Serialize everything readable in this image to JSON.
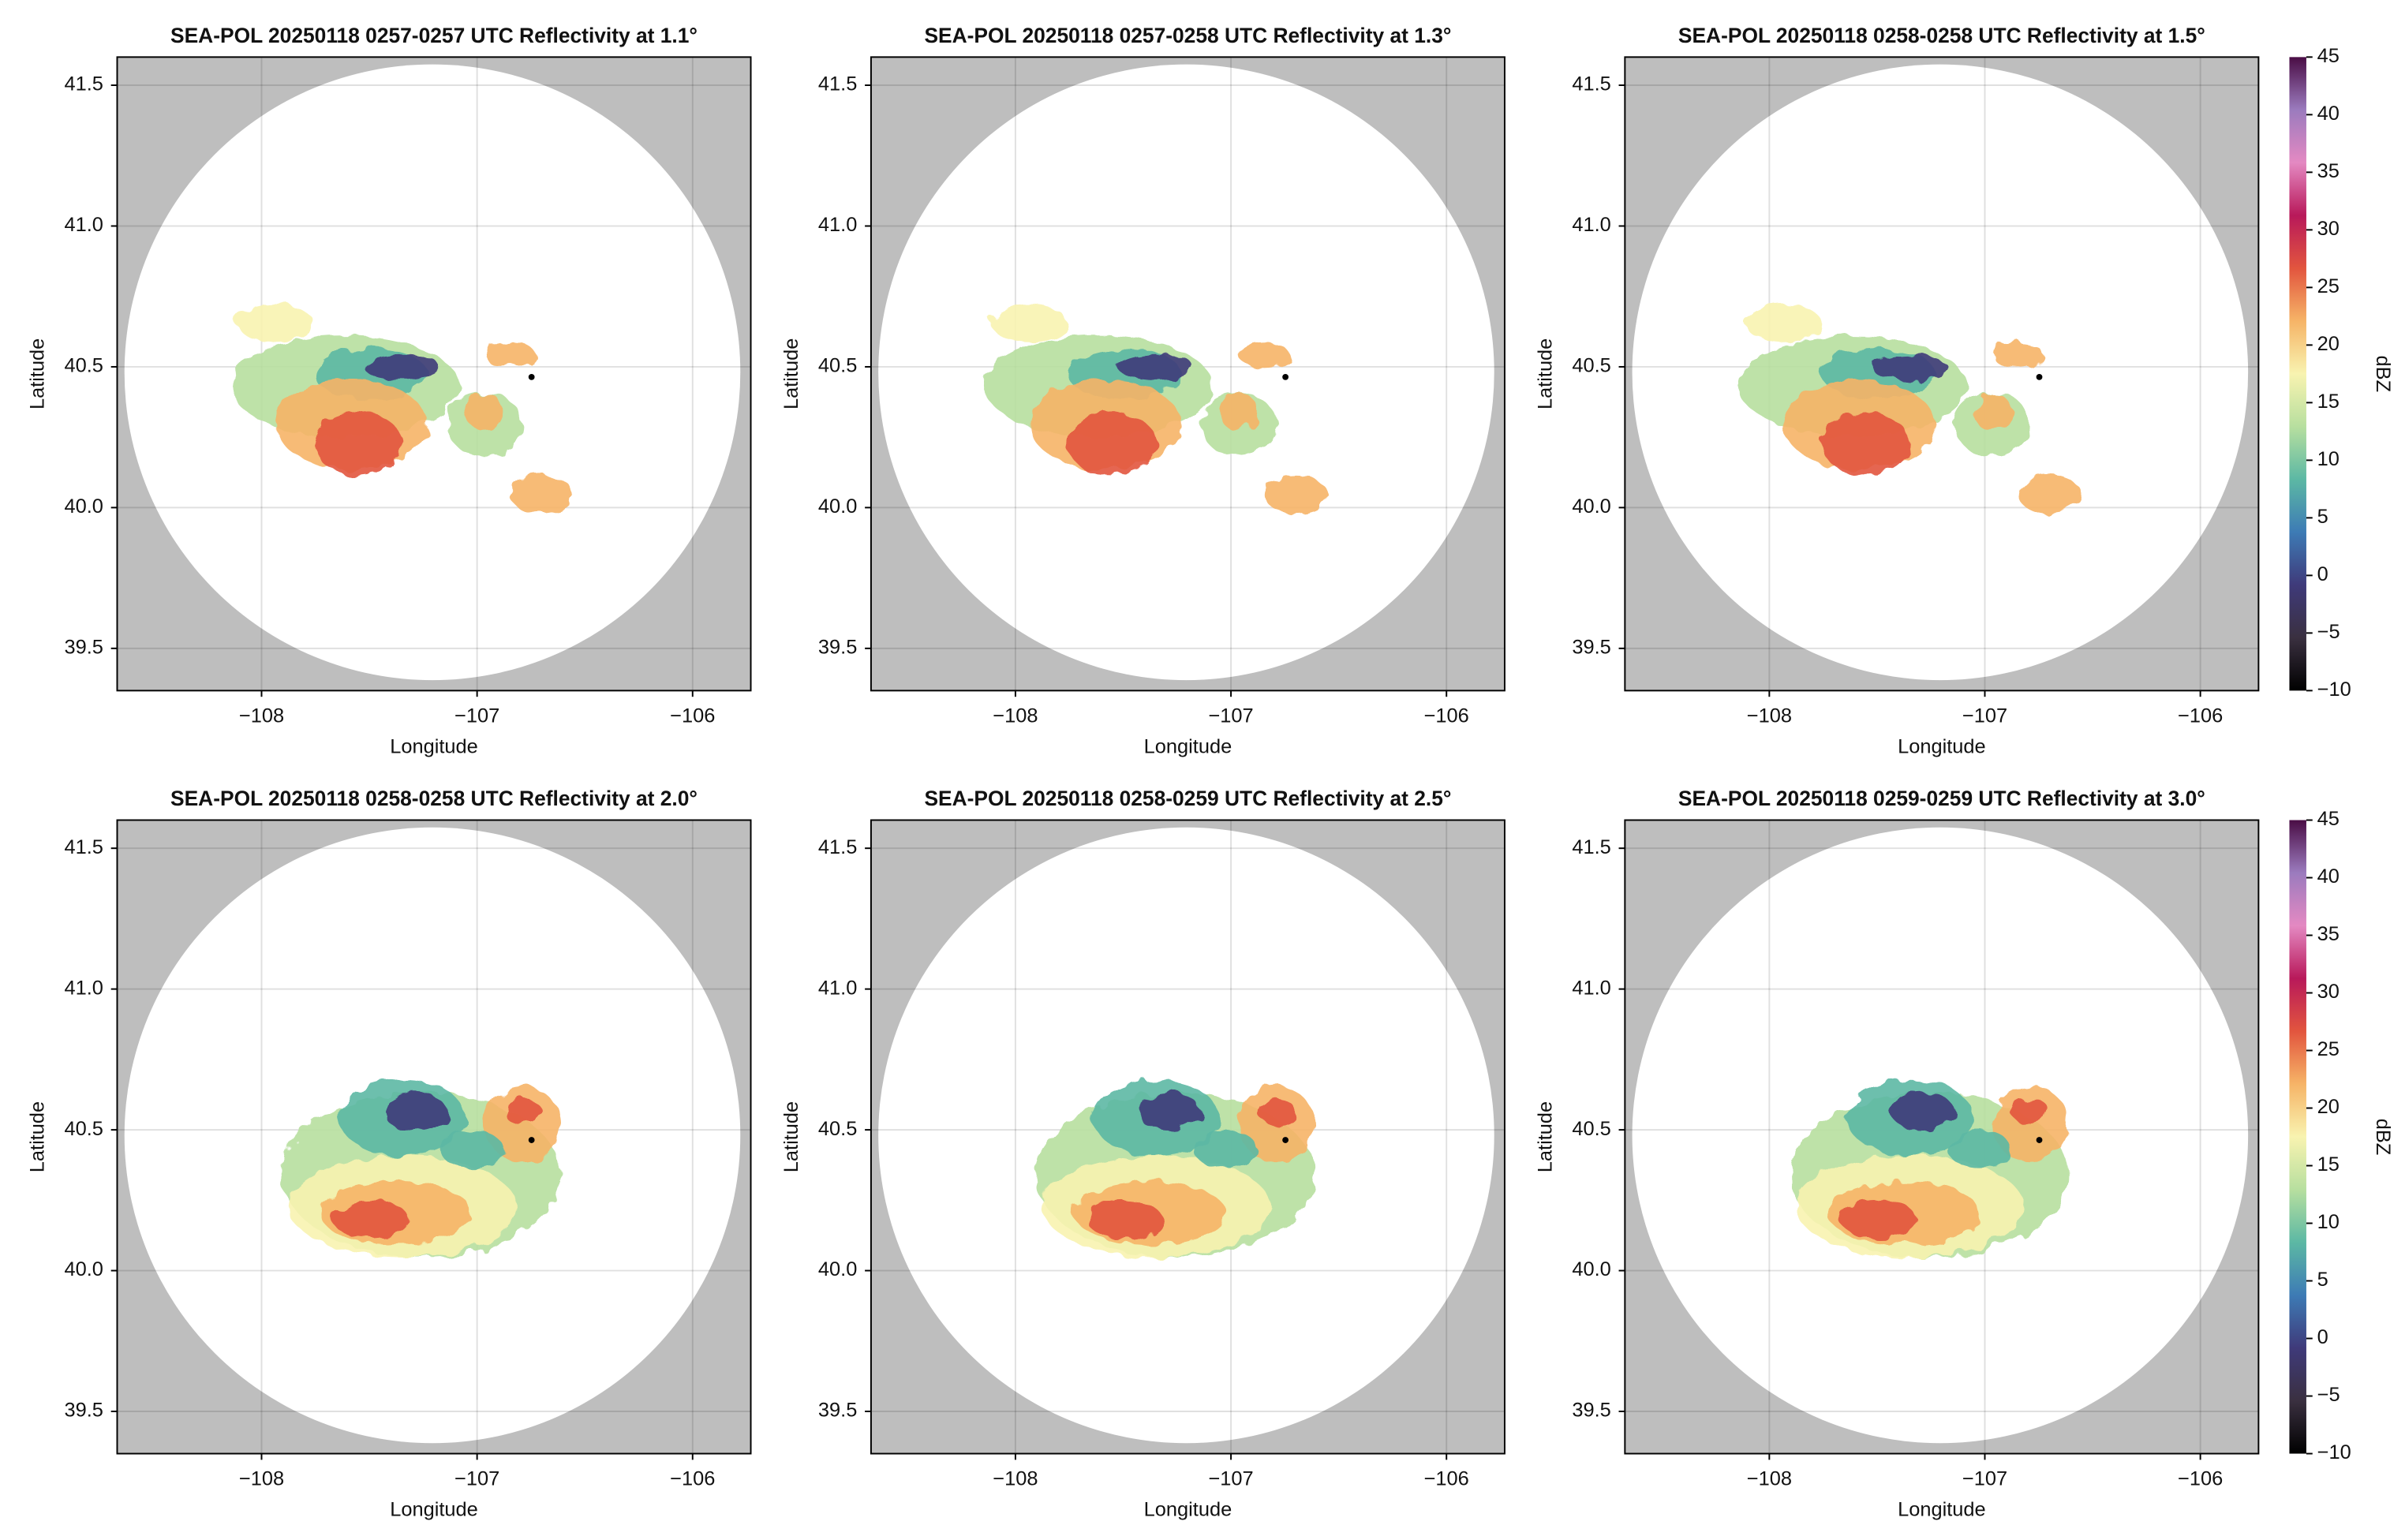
{
  "chart_data": [
    {
      "type": "radar",
      "title": "SEA-POL 20250118 0257-0257 UTC Reflectivity at 1.1°",
      "xlabel": "Longitude",
      "ylabel": "Latitude",
      "xlim": [
        -108.67,
        -105.73
      ],
      "ylim": [
        39.35,
        41.6
      ],
      "xticks": [
        {
          "value": -108,
          "label": "−108"
        },
        {
          "value": -107,
          "label": "−107"
        },
        {
          "value": -106,
          "label": "−106"
        }
      ],
      "yticks": [
        39.5,
        {
          "value": 40,
          "label": "40.0"
        },
        40.5,
        {
          "value": 41,
          "label": "41.0"
        },
        41.5
      ],
      "grid": true
    },
    {
      "type": "radar",
      "title": "SEA-POL 20250118 0257-0258 UTC Reflectivity at 1.3°",
      "xlabel": "Longitude",
      "ylabel": "Latitude",
      "xlim": [
        -108.67,
        -105.73
      ],
      "ylim": [
        39.35,
        41.6
      ],
      "xticks": [
        {
          "value": -108,
          "label": "−108"
        },
        {
          "value": -107,
          "label": "−107"
        },
        {
          "value": -106,
          "label": "−106"
        }
      ],
      "yticks": [
        39.5,
        {
          "value": 40,
          "label": "40.0"
        },
        40.5,
        {
          "value": 41,
          "label": "41.0"
        },
        41.5
      ],
      "grid": true
    },
    {
      "type": "radar",
      "title": "SEA-POL 20250118 0258-0258 UTC Reflectivity at 1.5°",
      "xlabel": "Longitude",
      "ylabel": "Latitude",
      "xlim": [
        -108.67,
        -105.73
      ],
      "ylim": [
        39.35,
        41.6
      ],
      "xticks": [
        {
          "value": -108,
          "label": "−108"
        },
        {
          "value": -107,
          "label": "−107"
        },
        {
          "value": -106,
          "label": "−106"
        }
      ],
      "yticks": [
        39.5,
        {
          "value": 40,
          "label": "40.0"
        },
        40.5,
        {
          "value": 41,
          "label": "41.0"
        },
        41.5
      ],
      "grid": true,
      "colorbar": {
        "label": "dBZ",
        "lim": [
          -10,
          45
        ],
        "ticks": [
          {
            "value": -10,
            "label": "−10"
          },
          {
            "value": -5,
            "label": "−5"
          },
          0,
          5,
          10,
          15,
          20,
          25,
          30,
          35,
          40,
          45
        ],
        "colors": [
          "#000000",
          "#3a3040",
          "#3f3a7a",
          "#3d7bb5",
          "#5cb8a4",
          "#b7df9f",
          "#f8f3b0",
          "#f6b467",
          "#e2553e",
          "#b8195a",
          "#e489c2",
          "#9b7bbe",
          "#4a0d45"
        ]
      }
    },
    {
      "type": "radar",
      "title": "SEA-POL 20250118 0258-0258 UTC Reflectivity at 2.0°",
      "xlabel": "Longitude",
      "ylabel": "Latitude",
      "xlim": [
        -108.67,
        -105.73
      ],
      "ylim": [
        39.35,
        41.6
      ],
      "xticks": [
        {
          "value": -108,
          "label": "−108"
        },
        {
          "value": -107,
          "label": "−107"
        },
        {
          "value": -106,
          "label": "−106"
        }
      ],
      "yticks": [
        39.5,
        {
          "value": 40,
          "label": "40.0"
        },
        40.5,
        {
          "value": 41,
          "label": "41.0"
        },
        41.5
      ],
      "grid": true
    },
    {
      "type": "radar",
      "title": "SEA-POL 20250118 0258-0259 UTC Reflectivity at 2.5°",
      "xlabel": "Longitude",
      "ylabel": "Latitude",
      "xlim": [
        -108.67,
        -105.73
      ],
      "ylim": [
        39.35,
        41.6
      ],
      "xticks": [
        {
          "value": -108,
          "label": "−108"
        },
        {
          "value": -107,
          "label": "−107"
        },
        {
          "value": -106,
          "label": "−106"
        }
      ],
      "yticks": [
        39.5,
        {
          "value": 40,
          "label": "40.0"
        },
        40.5,
        {
          "value": 41,
          "label": "41.0"
        },
        41.5
      ],
      "grid": true
    },
    {
      "type": "radar",
      "title": "SEA-POL 20250118 0259-0259 UTC Reflectivity at 3.0°",
      "xlabel": "Longitude",
      "ylabel": "Latitude",
      "xlim": [
        -108.67,
        -105.73
      ],
      "ylim": [
        39.35,
        41.6
      ],
      "xticks": [
        {
          "value": -108,
          "label": "−108"
        },
        {
          "value": -107,
          "label": "−107"
        },
        {
          "value": -106,
          "label": "−106"
        }
      ],
      "yticks": [
        39.5,
        {
          "value": 40,
          "label": "40.0"
        },
        40.5,
        {
          "value": 41,
          "label": "41.0"
        },
        41.5
      ],
      "grid": true,
      "colorbar": {
        "label": "dBZ",
        "lim": [
          -10,
          45
        ],
        "ticks": [
          {
            "value": -10,
            "label": "−10"
          },
          {
            "value": -5,
            "label": "−5"
          },
          0,
          5,
          10,
          15,
          20,
          25,
          30,
          35,
          40,
          45
        ],
        "colors": [
          "#000000",
          "#3a3040",
          "#3f3a7a",
          "#3d7bb5",
          "#5cb8a4",
          "#b7df9f",
          "#f8f3b0",
          "#f6b467",
          "#e2553e",
          "#b8195a",
          "#e489c2",
          "#9b7bbe",
          "#4a0d45"
        ]
      }
    }
  ]
}
